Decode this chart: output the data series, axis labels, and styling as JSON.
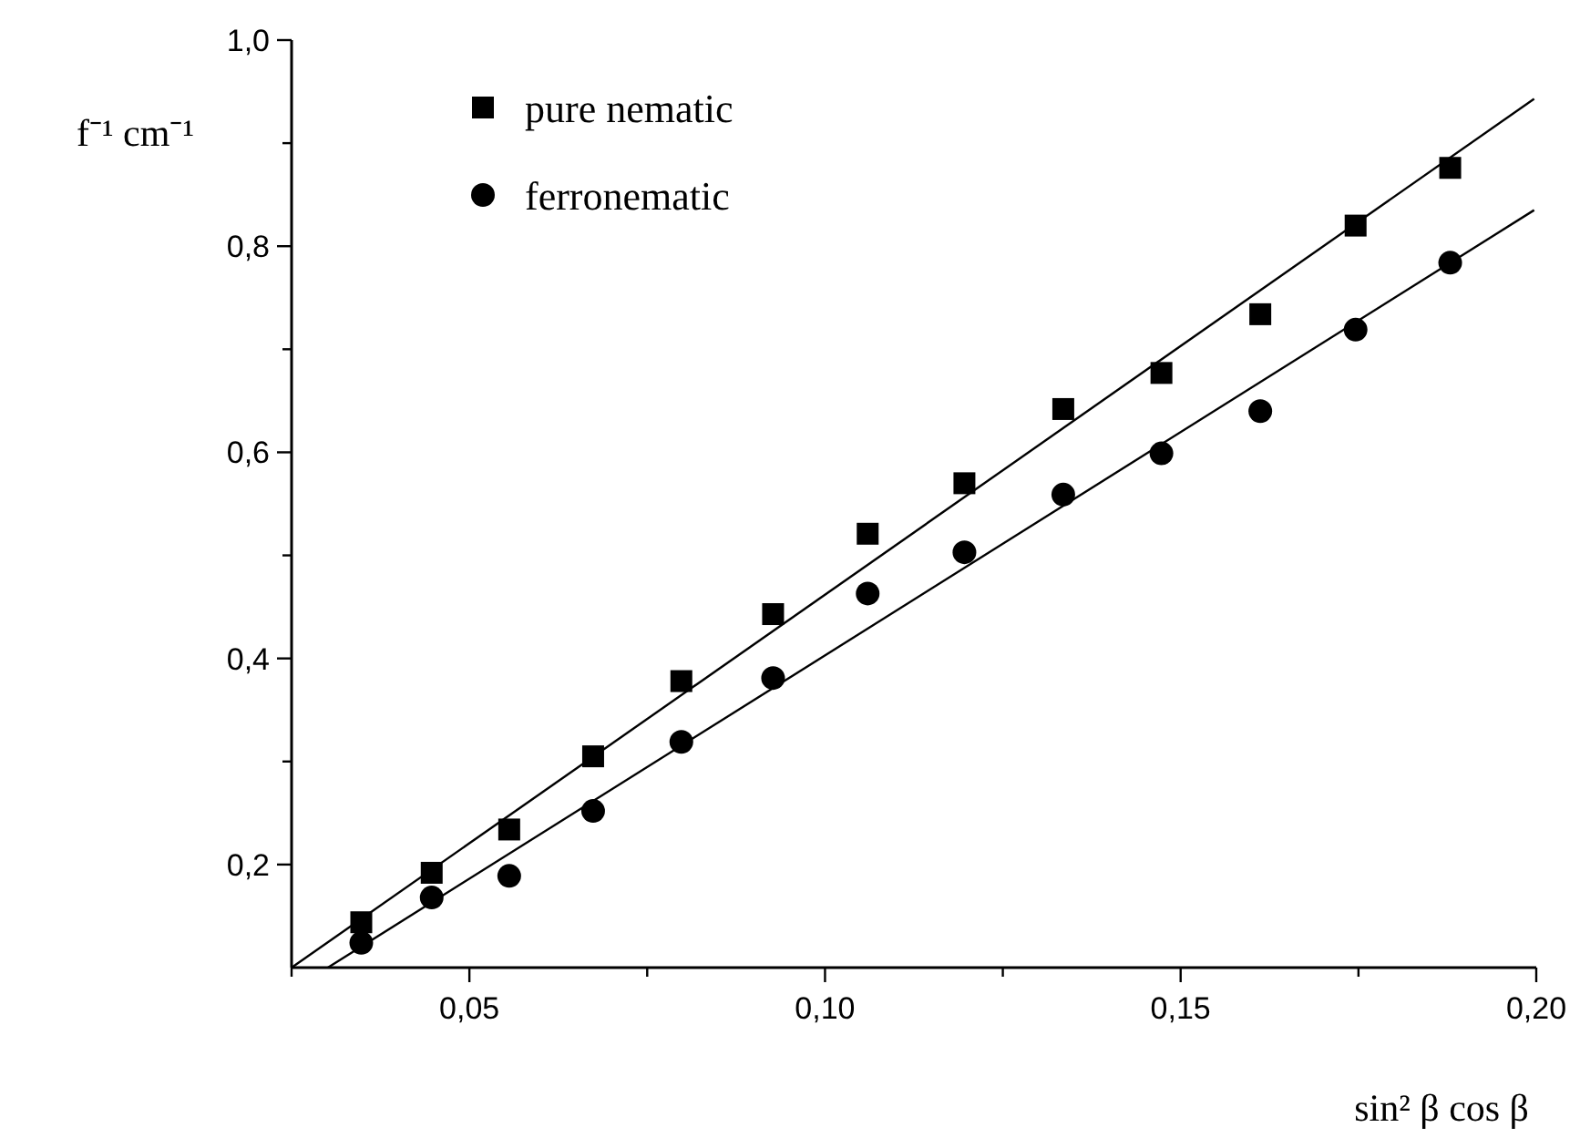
{
  "chart_data": {
    "type": "scatter",
    "xlabel": "sin² β cos β",
    "ylabel": "f⁻¹ cm⁻¹",
    "xlim": [
      0.025,
      0.2
    ],
    "ylim": [
      0.1,
      1.0
    ],
    "xticks": [
      {
        "value": 0.025,
        "label": null
      },
      {
        "value": 0.05,
        "label": "0,05"
      },
      {
        "value": 0.075,
        "label": null
      },
      {
        "value": 0.1,
        "label": "0,10"
      },
      {
        "value": 0.125,
        "label": null
      },
      {
        "value": 0.15,
        "label": "0,15"
      },
      {
        "value": 0.175,
        "label": null
      },
      {
        "value": 0.2,
        "label": "0,20"
      }
    ],
    "yticks": [
      {
        "value": 0.2,
        "label": "0,2"
      },
      {
        "value": 0.3,
        "label": null
      },
      {
        "value": 0.4,
        "label": "0,4"
      },
      {
        "value": 0.5,
        "label": null
      },
      {
        "value": 0.6,
        "label": "0,6"
      },
      {
        "value": 0.7,
        "label": null
      },
      {
        "value": 0.8,
        "label": "0,8"
      },
      {
        "value": 0.9,
        "label": null
      },
      {
        "value": 1.0,
        "label": "1,0"
      }
    ],
    "grid": false,
    "legend": "top left",
    "x": [
      0.0348,
      0.0447,
      0.0556,
      0.0674,
      0.0798,
      0.0927,
      0.106,
      0.1196,
      0.1335,
      0.1473,
      0.1612,
      0.1746,
      0.1879
    ],
    "series": [
      {
        "name": "pure nematic",
        "color": "#000000",
        "marker": "square",
        "values": [
          0.144,
          0.192,
          0.234,
          0.305,
          0.378,
          0.443,
          0.521,
          0.57,
          0.642,
          0.677,
          0.734,
          0.82,
          0.876
        ]
      },
      {
        "name": "ferronematic",
        "color": "#000000",
        "marker": "circle",
        "values": [
          0.124,
          0.168,
          0.189,
          0.252,
          0.319,
          0.381,
          0.463,
          0.503,
          0.559,
          0.599,
          0.64,
          0.719,
          0.784
        ]
      },
      {
        "type": "line",
        "color": "#000000",
        "marker": "none",
        "x": [
          0.025,
          0.1997
        ],
        "values": [
          0.1,
          0.943
        ]
      },
      {
        "type": "line",
        "color": "#000000",
        "marker": "none",
        "x": [
          0.0301,
          0.1997
        ],
        "values": [
          0.1,
          0.835
        ]
      }
    ]
  }
}
